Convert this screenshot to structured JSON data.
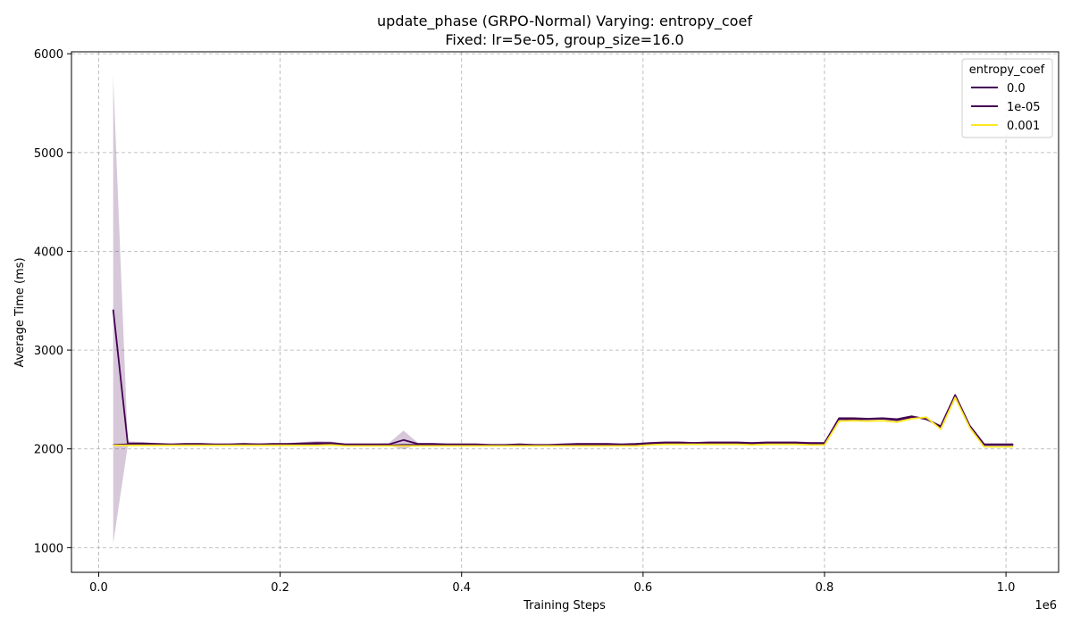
{
  "chart_data": {
    "type": "line",
    "title": "update_phase (GRPO-Normal) Varying: entropy_coef",
    "subtitle": "Fixed: lr=5e-05, group_size=16.0",
    "xlabel": "Training Steps",
    "ylabel": "Average Time (ms)",
    "x_offset_label": "1e6",
    "xlim": [
      -0.03,
      1.058
    ],
    "ylim": [
      750,
      6020
    ],
    "xticks": [
      0.0,
      0.2,
      0.4,
      0.6,
      0.8,
      1.0
    ],
    "xtick_labels": [
      "0.0",
      "0.2",
      "0.4",
      "0.6",
      "0.8",
      "1.0"
    ],
    "yticks": [
      1000,
      2000,
      3000,
      4000,
      5000,
      6000
    ],
    "ytick_labels": [
      "1000",
      "2000",
      "3000",
      "4000",
      "5000",
      "6000"
    ],
    "grid": true,
    "legend": {
      "title": "entropy_coef",
      "position": "top-right"
    },
    "x": [
      0.016,
      0.032,
      0.048,
      0.064,
      0.08,
      0.096,
      0.112,
      0.128,
      0.144,
      0.16,
      0.176,
      0.192,
      0.208,
      0.224,
      0.24,
      0.256,
      0.272,
      0.288,
      0.304,
      0.32,
      0.336,
      0.352,
      0.368,
      0.384,
      0.4,
      0.416,
      0.432,
      0.448,
      0.464,
      0.48,
      0.496,
      0.512,
      0.528,
      0.544,
      0.56,
      0.576,
      0.592,
      0.608,
      0.624,
      0.64,
      0.656,
      0.672,
      0.688,
      0.704,
      0.72,
      0.736,
      0.752,
      0.768,
      0.784,
      0.8,
      0.816,
      0.832,
      0.848,
      0.864,
      0.88,
      0.896,
      0.912,
      0.928,
      0.944,
      0.96,
      0.976,
      0.992,
      1.008
    ],
    "series": [
      {
        "name": "0.0",
        "color": "#440154",
        "values": [
          2040,
          2045,
          2045,
          2045,
          2040,
          2045,
          2045,
          2040,
          2040,
          2045,
          2045,
          2045,
          2045,
          2045,
          2050,
          2055,
          2035,
          2035,
          2035,
          2035,
          2040,
          2040,
          2040,
          2040,
          2035,
          2035,
          2035,
          2035,
          2035,
          2035,
          2035,
          2035,
          2040,
          2040,
          2040,
          2040,
          2045,
          2055,
          2060,
          2060,
          2060,
          2060,
          2060,
          2060,
          2055,
          2060,
          2060,
          2060,
          2055,
          2055,
          2300,
          2300,
          2300,
          2305,
          2290,
          2320,
          2310,
          2220,
          2540,
          2230,
          2040,
          2040,
          2040
        ]
      },
      {
        "name": "1e-05",
        "color": "#440154",
        "values": [
          3410,
          2055,
          2055,
          2050,
          2045,
          2050,
          2050,
          2045,
          2045,
          2050,
          2045,
          2050,
          2050,
          2055,
          2060,
          2060,
          2045,
          2045,
          2045,
          2045,
          2090,
          2050,
          2050,
          2045,
          2045,
          2045,
          2040,
          2040,
          2045,
          2040,
          2040,
          2045,
          2050,
          2050,
          2050,
          2045,
          2050,
          2060,
          2065,
          2065,
          2060,
          2065,
          2065,
          2065,
          2060,
          2065,
          2065,
          2065,
          2060,
          2060,
          2310,
          2310,
          2305,
          2310,
          2300,
          2330,
          2300,
          2230,
          2545,
          2235,
          2045,
          2045,
          2045
        ],
        "band_lower": [
          1040,
          2030,
          2045,
          2040,
          2035,
          2040,
          2040,
          2035,
          2035,
          2040,
          2035,
          2040,
          2040,
          2040,
          2040,
          2045,
          2035,
          2035,
          2035,
          2030,
          1995,
          2040,
          2040,
          2035,
          2035,
          2035,
          2030,
          2030,
          2035,
          2030,
          2030,
          2035,
          2040,
          2040,
          2040,
          2035,
          2040,
          2050,
          2055,
          2055,
          2050,
          2055,
          2055,
          2055,
          2050,
          2055,
          2055,
          2055,
          2050,
          2050,
          2300,
          2300,
          2295,
          2300,
          2290,
          2320,
          2290,
          2220,
          2535,
          2225,
          2035,
          2035,
          2035
        ],
        "band_upper": [
          5780,
          2075,
          2070,
          2060,
          2055,
          2060,
          2060,
          2055,
          2055,
          2060,
          2055,
          2060,
          2060,
          2070,
          2080,
          2075,
          2055,
          2055,
          2055,
          2060,
          2185,
          2060,
          2060,
          2055,
          2055,
          2055,
          2050,
          2050,
          2055,
          2050,
          2050,
          2055,
          2060,
          2060,
          2060,
          2055,
          2060,
          2070,
          2075,
          2075,
          2070,
          2075,
          2075,
          2075,
          2070,
          2075,
          2075,
          2075,
          2070,
          2070,
          2320,
          2320,
          2315,
          2320,
          2310,
          2340,
          2310,
          2240,
          2555,
          2245,
          2055,
          2055,
          2055
        ]
      },
      {
        "name": "0.001",
        "color": "#fde725",
        "values": [
          2035,
          2035,
          2035,
          2035,
          2035,
          2035,
          2035,
          2035,
          2035,
          2035,
          2035,
          2035,
          2035,
          2035,
          2035,
          2040,
          2030,
          2030,
          2030,
          2030,
          2030,
          2030,
          2030,
          2030,
          2030,
          2030,
          2030,
          2030,
          2030,
          2030,
          2030,
          2030,
          2030,
          2030,
          2030,
          2030,
          2030,
          2040,
          2045,
          2045,
          2045,
          2045,
          2045,
          2045,
          2040,
          2045,
          2045,
          2045,
          2040,
          2040,
          2280,
          2285,
          2280,
          2285,
          2270,
          2305,
          2320,
          2200,
          2520,
          2215,
          2020,
          2020,
          2020
        ]
      }
    ]
  }
}
